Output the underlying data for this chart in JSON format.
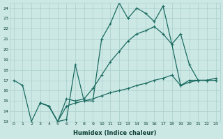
{
  "xlabel": "Humidex (Indice chaleur)",
  "xlim": [
    -0.5,
    23.5
  ],
  "ylim": [
    13,
    24.5
  ],
  "yticks": [
    13,
    14,
    15,
    16,
    17,
    18,
    19,
    20,
    21,
    22,
    23,
    24
  ],
  "xticks": [
    0,
    1,
    2,
    3,
    4,
    5,
    6,
    7,
    8,
    9,
    10,
    11,
    12,
    13,
    14,
    15,
    16,
    17,
    18,
    19,
    20,
    21,
    22,
    23
  ],
  "bg_color": "#cce8e5",
  "grid_color": "#aacfcc",
  "line_color": "#1a6b60",
  "line1_x": [
    0,
    1,
    2,
    3,
    4,
    5,
    6,
    7,
    8,
    9,
    10,
    11,
    12,
    13,
    14,
    15,
    16,
    17,
    18,
    19,
    20,
    21,
    22
  ],
  "line1_y": [
    17.0,
    16.5,
    13.0,
    14.8,
    14.5,
    13.0,
    13.2,
    18.5,
    15.0,
    15.0,
    21.0,
    22.5,
    24.5,
    23.0,
    24.0,
    23.5,
    22.7,
    24.2,
    20.5,
    21.5,
    18.5,
    17.0,
    17.0
  ],
  "line2_x": [
    3,
    4,
    5,
    6,
    7,
    8,
    9,
    10,
    11,
    12,
    13,
    14,
    15,
    16,
    17,
    18,
    19,
    20,
    21,
    22,
    23
  ],
  "line2_y": [
    14.8,
    14.5,
    13.0,
    15.2,
    15.0,
    15.2,
    16.2,
    17.5,
    18.8,
    19.8,
    20.8,
    21.5,
    21.8,
    22.2,
    21.5,
    20.5,
    16.5,
    17.0,
    17.0,
    17.0,
    17.0
  ],
  "line3_x": [
    3,
    4,
    5,
    6,
    7,
    8,
    9,
    10,
    11,
    12,
    13,
    14,
    15,
    16,
    17,
    18,
    19,
    20,
    21,
    22,
    23
  ],
  "line3_y": [
    14.8,
    14.5,
    13.0,
    14.5,
    14.8,
    15.0,
    15.2,
    15.5,
    15.8,
    16.0,
    16.2,
    16.5,
    16.7,
    17.0,
    17.2,
    17.5,
    16.5,
    16.8,
    17.0,
    17.0,
    17.2
  ]
}
